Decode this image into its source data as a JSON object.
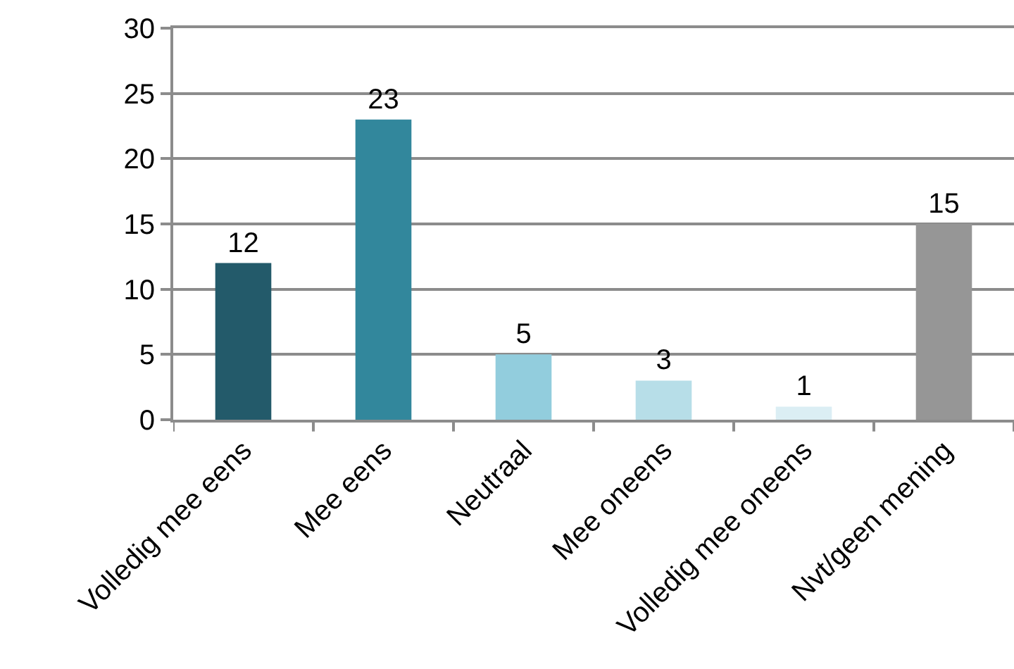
{
  "chart_data": {
    "type": "bar",
    "categories": [
      "Volledig mee eens",
      "Mee eens",
      "Neutraal",
      "Mee oneens",
      "Volledig mee oneens",
      "Nvt/geen mening"
    ],
    "values": [
      12,
      23,
      5,
      3,
      1,
      15
    ],
    "colors": [
      "#235a6a",
      "#32879c",
      "#92cddd",
      "#b7dee8",
      "#dbeef4",
      "#969696"
    ],
    "ylim": [
      0,
      30
    ],
    "yticks": [
      0,
      5,
      10,
      15,
      20,
      25,
      30
    ],
    "grid": "y",
    "data_labels": true
  }
}
